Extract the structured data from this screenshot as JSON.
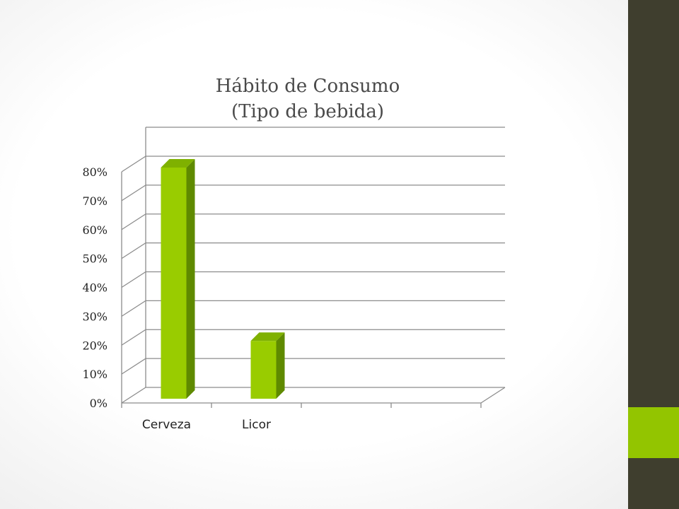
{
  "slide": {
    "sidebar_color": "#3f3e2e",
    "accent_color": "#93c500"
  },
  "chart_data": {
    "type": "bar",
    "title_line1": "Hábito de Consumo",
    "title_line2": "(Tipo de bebida)",
    "categories": [
      "Cerveza",
      "Licor",
      "",
      ""
    ],
    "values": [
      80,
      20,
      null,
      null
    ],
    "ylim": [
      0,
      80
    ],
    "y_ticks": [
      "0%",
      "10%",
      "20%",
      "30%",
      "40%",
      "50%",
      "60%",
      "70%",
      "80%"
    ],
    "grid": true,
    "style": "3d-column",
    "bar_color": "#99cc00"
  }
}
